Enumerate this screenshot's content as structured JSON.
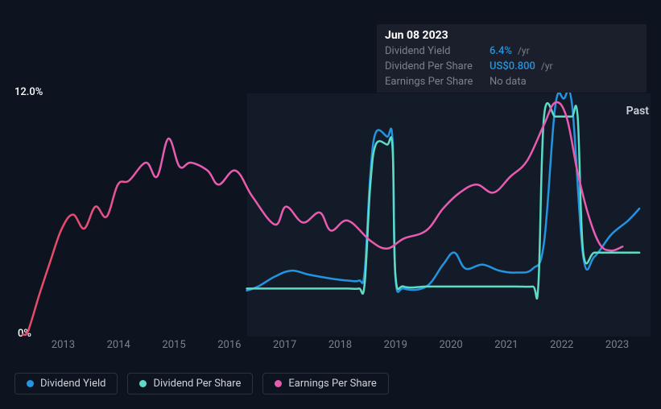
{
  "tooltip": {
    "date": "Jun 08 2023",
    "rows": [
      {
        "label": "Dividend Yield",
        "value": "6.4%",
        "unit": "/yr",
        "value_color": "#2394df"
      },
      {
        "label": "Dividend Per Share",
        "value": "US$0.800",
        "unit": "/yr",
        "value_color": "#2394df"
      },
      {
        "label": "Earnings Per Share",
        "value": "No data",
        "unit": "",
        "value_color": "#7a828e"
      }
    ]
  },
  "chart": {
    "background_color": "#0d1420",
    "plot_shaded_color": "#131b28",
    "y_axis": {
      "min_pct": 0,
      "max_pct": 12.0,
      "max_label": "12.0%",
      "min_label": "0%",
      "label_color": "#ffffff",
      "label_fontsize": 13
    },
    "x_axis": {
      "labels": [
        "2013",
        "2014",
        "2015",
        "2016",
        "2017",
        "2018",
        "2019",
        "2020",
        "2021",
        "2022",
        "2023"
      ],
      "color": "#7a828e",
      "fontsize": 13
    },
    "past_label": "Past",
    "shaded_xranges": [
      [
        2016.5,
        2023.7
      ]
    ],
    "series": [
      {
        "name": "Dividend Yield",
        "colors": [
          "#2394df"
        ],
        "stroke_width": 2.5,
        "points": [
          [
            2016.5,
            2.3
          ],
          [
            2016.7,
            2.5
          ],
          [
            2017.0,
            3.0
          ],
          [
            2017.3,
            3.3
          ],
          [
            2017.6,
            3.1
          ],
          [
            2018.0,
            2.9
          ],
          [
            2018.3,
            2.8
          ],
          [
            2018.5,
            2.8
          ],
          [
            2018.6,
            3.2
          ],
          [
            2018.7,
            8.0
          ],
          [
            2018.8,
            10.2
          ],
          [
            2019.0,
            10.0
          ],
          [
            2019.1,
            9.8
          ],
          [
            2019.15,
            3.0
          ],
          [
            2019.3,
            2.4
          ],
          [
            2019.7,
            2.5
          ],
          [
            2020.0,
            3.6
          ],
          [
            2020.2,
            4.2
          ],
          [
            2020.4,
            3.4
          ],
          [
            2020.7,
            3.6
          ],
          [
            2021.0,
            3.3
          ],
          [
            2021.3,
            3.2
          ],
          [
            2021.6,
            3.4
          ],
          [
            2021.8,
            4.7
          ],
          [
            2022.0,
            11.5
          ],
          [
            2022.15,
            11.9
          ],
          [
            2022.3,
            11.6
          ],
          [
            2022.5,
            4.0
          ],
          [
            2022.7,
            4.0
          ],
          [
            2023.0,
            5.1
          ],
          [
            2023.3,
            5.8
          ],
          [
            2023.5,
            6.4
          ]
        ]
      },
      {
        "name": "Dividend Per Share",
        "colors": [
          "#5cdbc6"
        ],
        "stroke_width": 2.5,
        "points": [
          [
            2016.5,
            2.4
          ],
          [
            2016.7,
            2.4
          ],
          [
            2017.0,
            2.4
          ],
          [
            2017.3,
            2.4
          ],
          [
            2017.6,
            2.4
          ],
          [
            2018.0,
            2.4
          ],
          [
            2018.3,
            2.4
          ],
          [
            2018.5,
            2.4
          ],
          [
            2018.6,
            2.6
          ],
          [
            2018.7,
            7.5
          ],
          [
            2018.8,
            9.6
          ],
          [
            2019.0,
            9.6
          ],
          [
            2019.1,
            9.4
          ],
          [
            2019.15,
            3.1
          ],
          [
            2019.3,
            2.5
          ],
          [
            2019.7,
            2.5
          ],
          [
            2020.0,
            2.5
          ],
          [
            2020.2,
            2.5
          ],
          [
            2020.4,
            2.5
          ],
          [
            2020.7,
            2.5
          ],
          [
            2021.0,
            2.5
          ],
          [
            2021.3,
            2.5
          ],
          [
            2021.6,
            2.5
          ],
          [
            2021.7,
            2.6
          ],
          [
            2021.8,
            11.0
          ],
          [
            2022.0,
            11.0
          ],
          [
            2022.15,
            11.0
          ],
          [
            2022.3,
            11.0
          ],
          [
            2022.4,
            11.0
          ],
          [
            2022.5,
            4.2
          ],
          [
            2022.7,
            4.2
          ],
          [
            2023.0,
            4.2
          ],
          [
            2023.3,
            4.2
          ],
          [
            2023.5,
            4.2
          ]
        ]
      },
      {
        "name": "Earnings Per Share",
        "colors": [
          "#e84a6a",
          "#e85bb0"
        ],
        "gradient_split_x": 2013.4,
        "stroke_width": 2.5,
        "points": [
          [
            2012.5,
            0.1
          ],
          [
            2012.6,
            0.3
          ],
          [
            2012.8,
            2.1
          ],
          [
            2013.0,
            3.8
          ],
          [
            2013.2,
            5.4
          ],
          [
            2013.4,
            6.1
          ],
          [
            2013.6,
            5.4
          ],
          [
            2013.8,
            6.5
          ],
          [
            2014.0,
            6.0
          ],
          [
            2014.2,
            7.6
          ],
          [
            2014.4,
            7.8
          ],
          [
            2014.7,
            8.7
          ],
          [
            2014.9,
            8.0
          ],
          [
            2015.1,
            9.9
          ],
          [
            2015.3,
            8.5
          ],
          [
            2015.5,
            8.7
          ],
          [
            2015.8,
            8.3
          ],
          [
            2016.0,
            7.6
          ],
          [
            2016.3,
            8.3
          ],
          [
            2016.6,
            7.0
          ],
          [
            2017.0,
            5.6
          ],
          [
            2017.2,
            6.5
          ],
          [
            2017.5,
            5.7
          ],
          [
            2017.8,
            6.2
          ],
          [
            2018.0,
            5.3
          ],
          [
            2018.3,
            5.8
          ],
          [
            2018.7,
            4.8
          ],
          [
            2019.0,
            4.4
          ],
          [
            2019.3,
            4.9
          ],
          [
            2019.7,
            5.3
          ],
          [
            2020.0,
            6.4
          ],
          [
            2020.3,
            7.2
          ],
          [
            2020.6,
            7.6
          ],
          [
            2020.9,
            7.2
          ],
          [
            2021.2,
            8.0
          ],
          [
            2021.5,
            8.8
          ],
          [
            2021.8,
            10.6
          ],
          [
            2022.0,
            11.7
          ],
          [
            2022.2,
            11.0
          ],
          [
            2022.4,
            8.2
          ],
          [
            2022.6,
            6.0
          ],
          [
            2022.8,
            4.6
          ],
          [
            2023.0,
            4.3
          ],
          [
            2023.2,
            4.5
          ]
        ]
      }
    ]
  },
  "legend": {
    "items": [
      {
        "label": "Dividend Yield",
        "color": "#2394df"
      },
      {
        "label": "Dividend Per Share",
        "color": "#5cdbc6"
      },
      {
        "label": "Earnings Per Share",
        "color": "#e85bb0"
      }
    ],
    "border_color": "#2a3240",
    "text_color": "#cdd2d8",
    "fontsize": 13
  }
}
